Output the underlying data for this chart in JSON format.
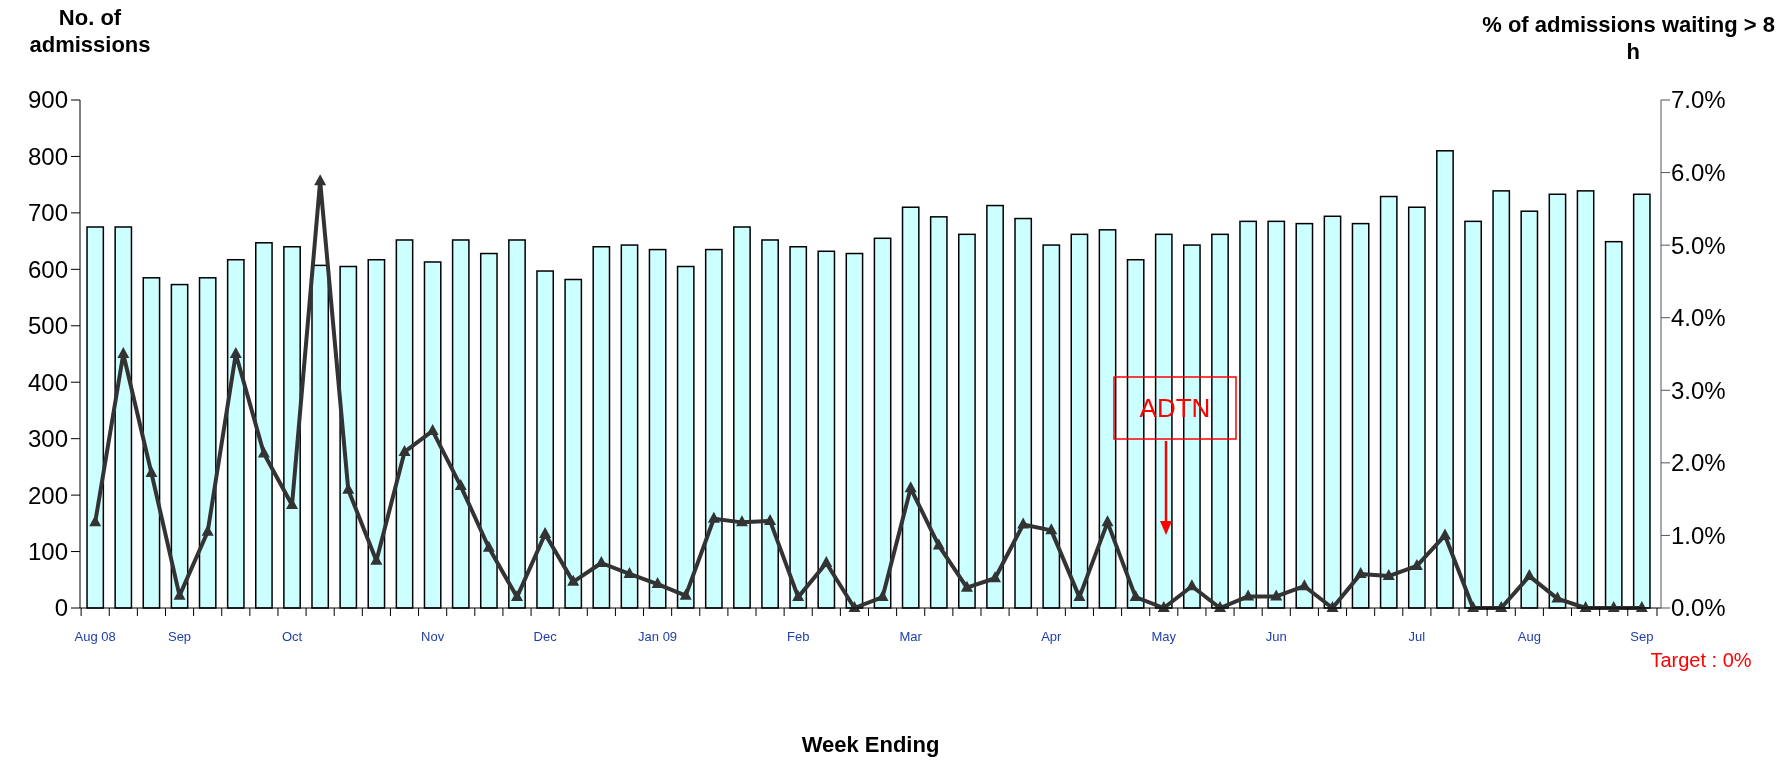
{
  "chart_data": {
    "type": "bar",
    "ylabel": "No. of admissions",
    "y2label": "% of admissions waiting > 8 h",
    "xlabel": "Week Ending",
    "categories": [
      "Aug 08",
      null,
      null,
      "Sep",
      null,
      null,
      null,
      "Oct",
      null,
      null,
      null,
      null,
      "Nov",
      null,
      null,
      null,
      "Dec",
      null,
      null,
      null,
      "Jan 09",
      null,
      null,
      null,
      null,
      "Feb",
      null,
      null,
      null,
      "Mar",
      null,
      null,
      null,
      null,
      "Apr",
      null,
      null,
      null,
      "May",
      null,
      null,
      null,
      "Jun",
      null,
      null,
      null,
      null,
      "Jul",
      null,
      null,
      null,
      "Aug",
      null,
      null,
      null,
      "Sep"
    ],
    "series": [
      {
        "color": "#ccffff",
        "values": [
          675,
          675,
          585,
          573,
          585,
          617,
          647,
          640,
          607,
          605,
          617,
          652,
          613,
          652,
          628,
          652,
          597,
          582,
          640,
          643,
          635,
          605,
          635,
          675,
          652,
          640,
          632,
          628,
          655,
          710,
          693,
          662,
          713,
          690,
          643,
          662,
          670,
          617,
          662,
          643,
          662,
          685,
          685,
          681,
          694,
          681,
          729,
          710,
          810,
          685,
          739,
          703,
          733,
          739,
          649,
          733
        ]
      },
      {
        "type": "line",
        "axis": "y2",
        "color": "#333333",
        "marker": "triangle",
        "values": [
          1.18,
          3.5,
          1.86,
          0.17,
          1.05,
          3.5,
          2.13,
          1.42,
          5.88,
          1.63,
          0.65,
          2.15,
          2.44,
          1.68,
          0.83,
          0.15,
          1.02,
          0.36,
          0.62,
          0.47,
          0.33,
          0.17,
          1.23,
          1.18,
          1.2,
          0.15,
          0.62,
          0,
          0.15,
          1.65,
          0.86,
          0.28,
          0.41,
          1.15,
          1.07,
          0.15,
          1.18,
          0.15,
          0,
          0.3,
          0,
          0.16,
          0.16,
          0.3,
          0,
          0.47,
          0.44,
          0.58,
          1.0,
          0,
          0,
          0.44,
          0.13,
          0,
          0,
          0
        ]
      }
    ],
    "ylim": [
      0,
      900
    ],
    "yticks": [
      0,
      100,
      200,
      300,
      400,
      500,
      600,
      700,
      800,
      900
    ],
    "y2lim": [
      0,
      7
    ],
    "y2ticks": [
      {
        "value": 0,
        "label": "0.0%"
      },
      {
        "value": 1,
        "label": "1.0%"
      },
      {
        "value": 2,
        "label": "2.0%"
      },
      {
        "value": 3,
        "label": "3.0%"
      },
      {
        "value": 4,
        "label": "4.0%"
      },
      {
        "value": 5,
        "label": "5.0%"
      },
      {
        "value": 6,
        "label": "6.0%"
      },
      {
        "value": 7,
        "label": "7.0%"
      }
    ],
    "annotations": [
      "ADTN",
      "Target : 0%"
    ],
    "grid": false
  }
}
